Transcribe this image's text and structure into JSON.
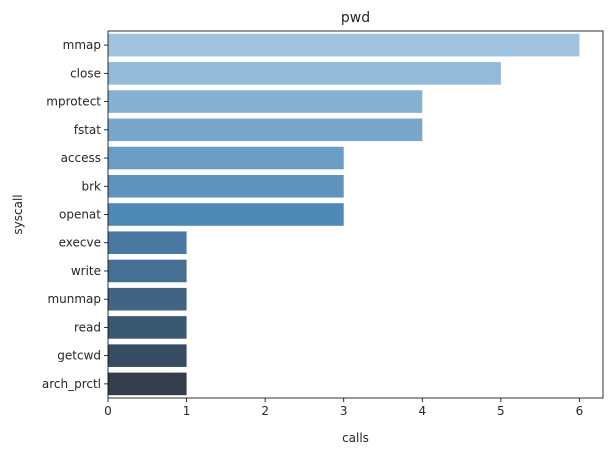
{
  "chart_data": {
    "type": "bar",
    "orientation": "horizontal",
    "title": "pwd",
    "xlabel": "calls",
    "ylabel": "syscall",
    "xlim": [
      0,
      6.3
    ],
    "xticks": [
      0,
      1,
      2,
      3,
      4,
      5,
      6
    ],
    "grid": false,
    "categories": [
      "mmap",
      "close",
      "mprotect",
      "fstat",
      "access",
      "brk",
      "openat",
      "execve",
      "write",
      "munmap",
      "read",
      "getcwd",
      "arch_prctl"
    ],
    "values": [
      6,
      5,
      4,
      4,
      3,
      3,
      3,
      1,
      1,
      1,
      1,
      1,
      1
    ],
    "colors": [
      "#a0c4e0",
      "#93bbd9",
      "#86b1d2",
      "#79a7cb",
      "#6b9dc4",
      "#5d93bd",
      "#4f89b6",
      "#4a7aa2",
      "#456f93",
      "#406482",
      "#3b5873",
      "#374c62",
      "#333d4c"
    ]
  }
}
